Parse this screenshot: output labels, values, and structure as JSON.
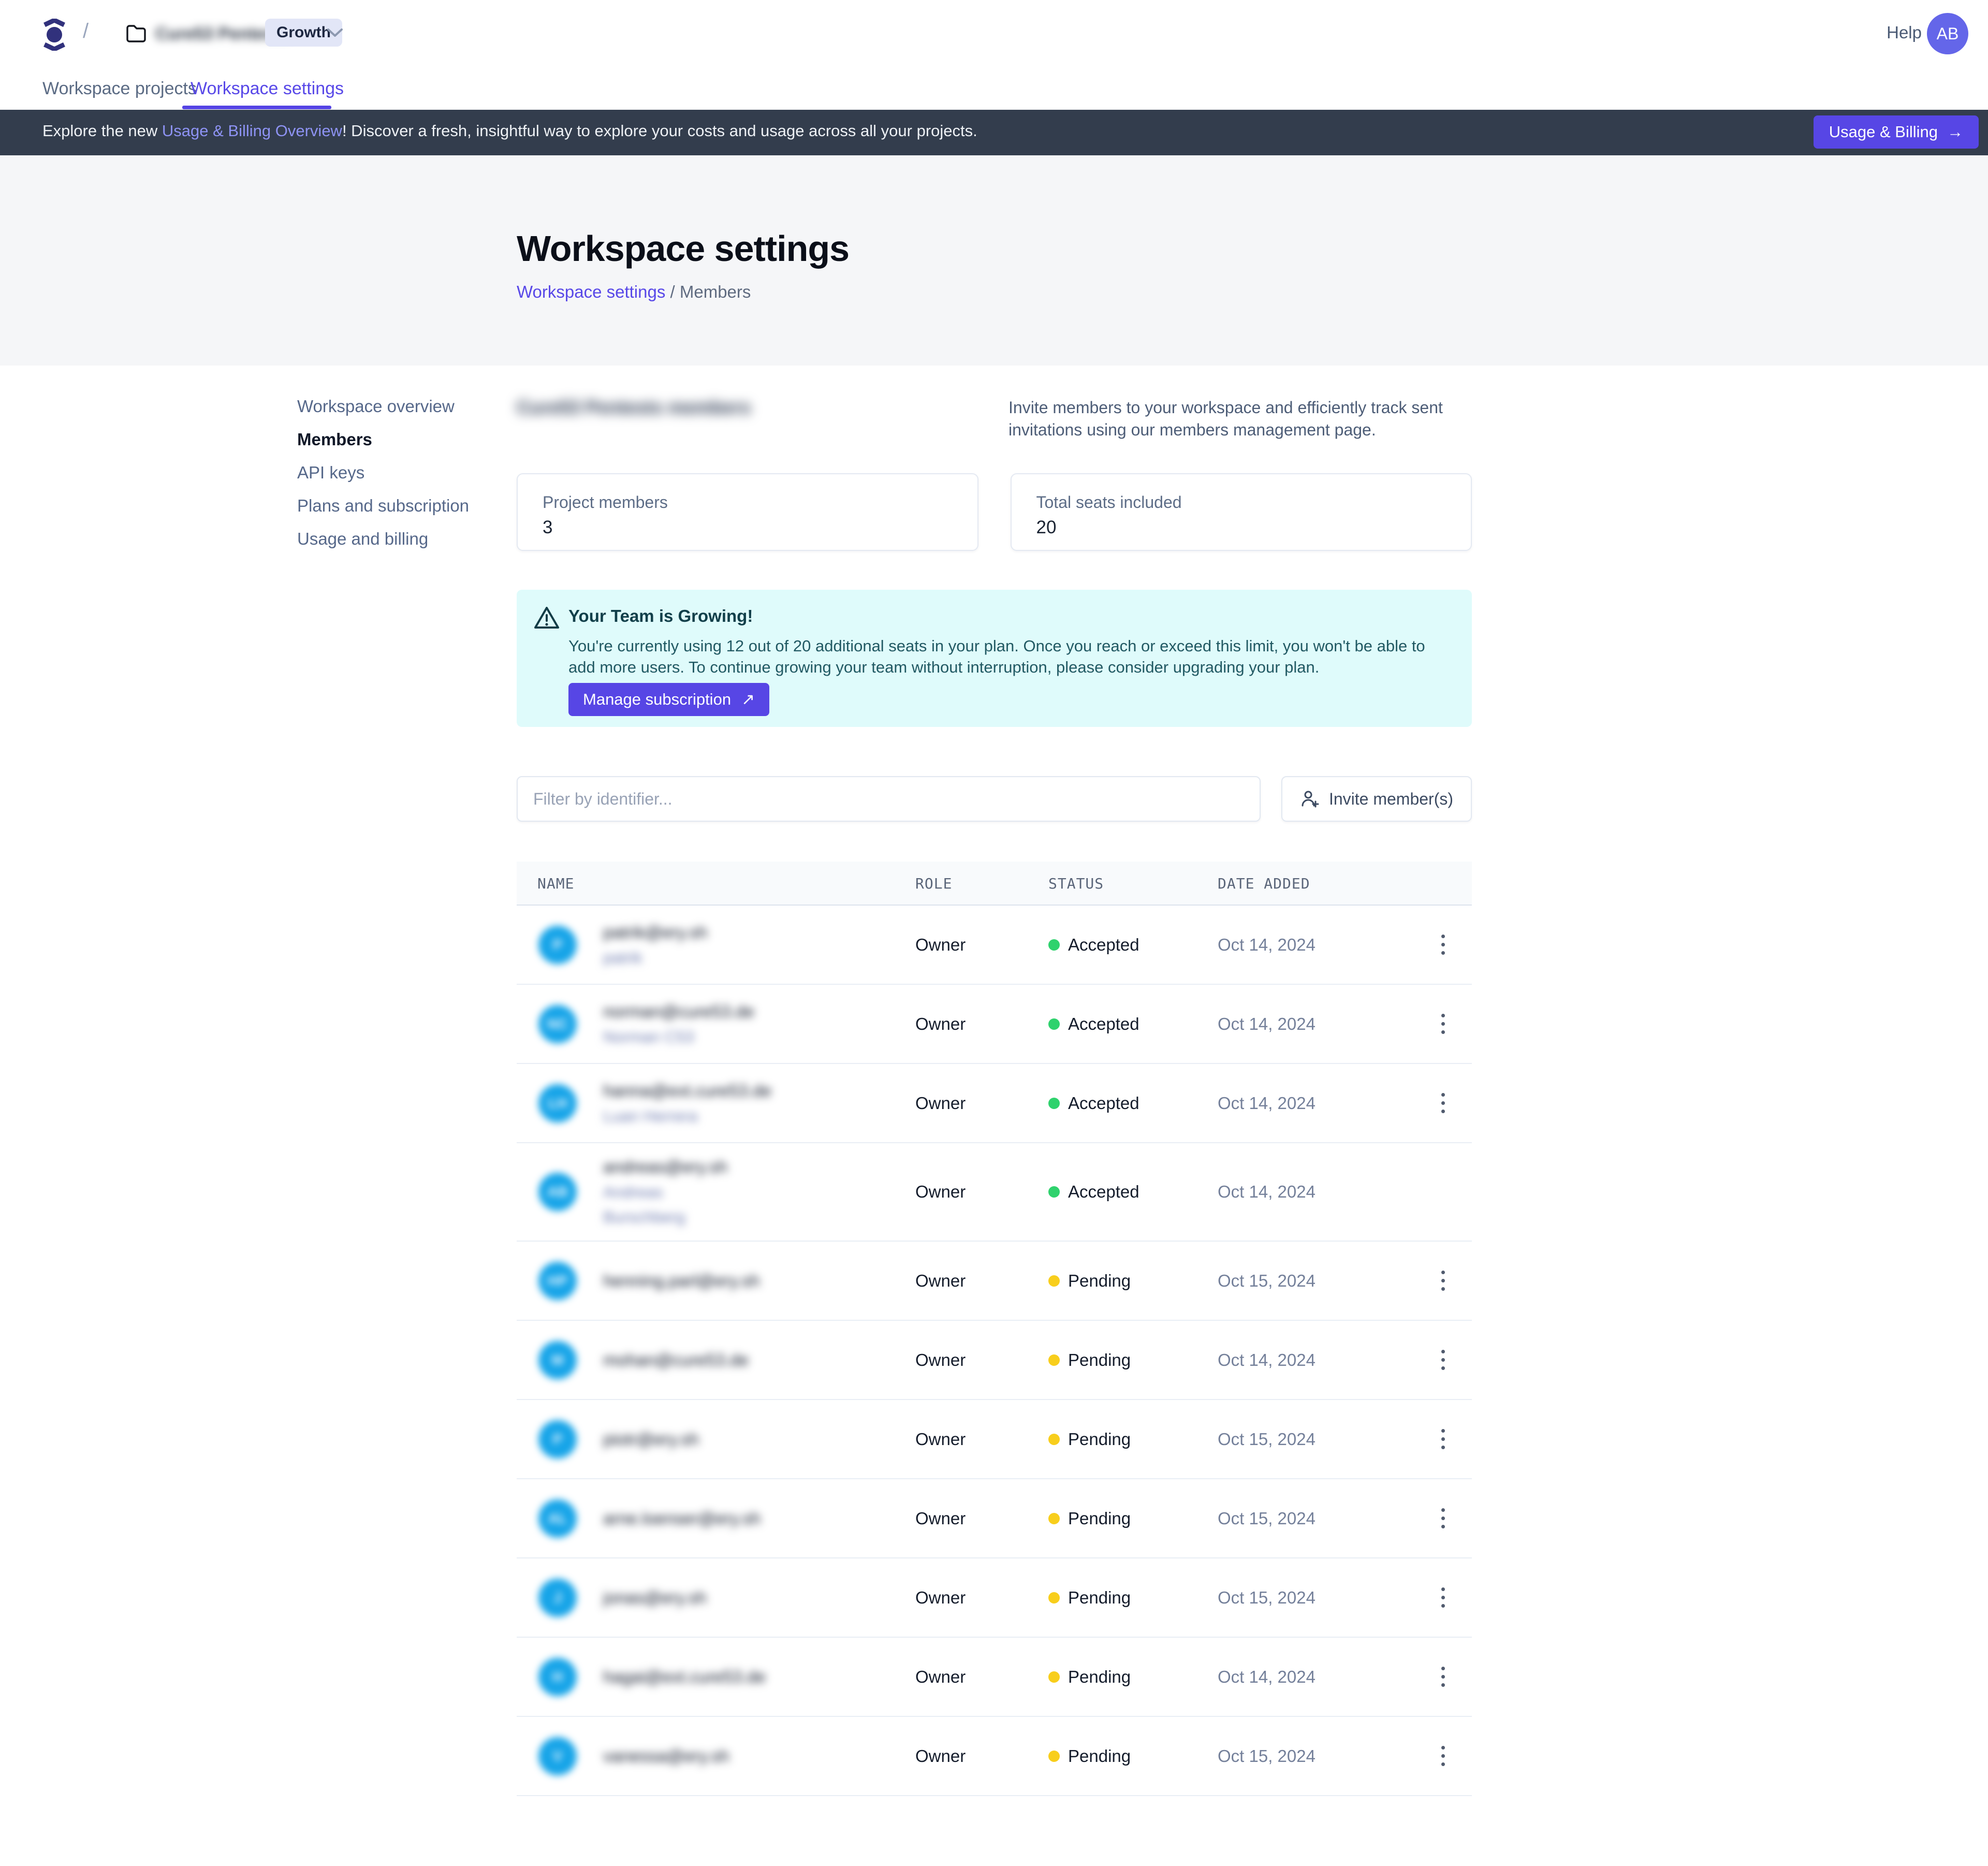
{
  "theme": {
    "accent": "#5746e5",
    "banner_bg": "#333d4d",
    "banner_link": "#8e93f4",
    "alert_bg": "#dffbfb",
    "alert_text": "#113f4a",
    "status_accepted": "#2fd26d",
    "status_pending": "#f8ce1c",
    "member_avatar": "#16a4e8",
    "user_avatar": "#6466e9"
  },
  "header": {
    "breadcrumb_slash": "/",
    "workspace_name": "Cure53 Pentests",
    "workspace_name_blurred": true,
    "plan_badge": "Growth",
    "help_label": "Help",
    "avatar_initials": "AB"
  },
  "tabs": [
    {
      "label": "Workspace projects",
      "active": false
    },
    {
      "label": "Workspace settings",
      "active": true
    }
  ],
  "banner": {
    "text_before": "Explore the new ",
    "link_text": "Usage & Billing Overview",
    "text_after": "! Discover a fresh, insightful way to explore your costs and usage across all your projects.",
    "button_label": "Usage & Billing",
    "button_arrow": "→"
  },
  "hero": {
    "title": "Workspace settings",
    "breadcrumb_link": "Workspace settings",
    "breadcrumb_rest": " / Members"
  },
  "sidebar": {
    "items": [
      {
        "label": "Workspace overview",
        "active": false
      },
      {
        "label": "Members",
        "active": true
      },
      {
        "label": "API keys",
        "active": false
      },
      {
        "label": "Plans and subscription",
        "active": false
      },
      {
        "label": "Usage and billing",
        "active": false
      }
    ]
  },
  "members_section": {
    "heading": "Cure53 Pentests members",
    "heading_blurred": true,
    "description": "Invite members to your workspace and efficiently track sent invitations using our members management page."
  },
  "stats": [
    {
      "label": "Project members",
      "value": "3"
    },
    {
      "label": "Total seats included",
      "value": "20"
    }
  ],
  "alert": {
    "title": "Your Team is Growing!",
    "body": "You're currently using 12 out of 20 additional seats in your plan. Once you reach or exceed this limit, you won't be able to add more users. To continue growing your team without interruption, please consider upgrading your plan.",
    "button_label": "Manage subscription",
    "button_arrow": "↗"
  },
  "toolbar": {
    "filter_placeholder": "Filter by identifier...",
    "invite_button_label": "Invite member(s)"
  },
  "table": {
    "columns": [
      "NAME",
      "ROLE",
      "STATUS",
      "DATE ADDED"
    ],
    "rows": [
      {
        "blurred": true,
        "initials": "P",
        "email": "patrik@ery.sh",
        "secondary_lines": [
          "patrik"
        ],
        "role": "Owner",
        "status": "Accepted",
        "date": "Oct 14, 2024",
        "has_menu": true
      },
      {
        "blurred": true,
        "initials": "NC",
        "email": "norman@cure53.de",
        "secondary_lines": [
          "Norman C53"
        ],
        "role": "Owner",
        "status": "Accepted",
        "date": "Oct 14, 2024",
        "has_menu": true
      },
      {
        "blurred": true,
        "initials": "LH",
        "email": "hanna@ext.cure53.de",
        "secondary_lines": [
          "Luan Herrera"
        ],
        "role": "Owner",
        "status": "Accepted",
        "date": "Oct 14, 2024",
        "has_menu": true
      },
      {
        "blurred": true,
        "initials": "AB",
        "email": "andreas@ery.sh",
        "secondary_lines": [
          "Andreas",
          "Burschberg"
        ],
        "role": "Owner",
        "status": "Accepted",
        "date": "Oct 14, 2024",
        "has_menu": false
      },
      {
        "blurred": true,
        "initials": "HP",
        "email": "henning.parl@ery.sh",
        "secondary_lines": [],
        "role": "Owner",
        "status": "Pending",
        "date": "Oct 15, 2024",
        "has_menu": true
      },
      {
        "blurred": true,
        "initials": "M",
        "email": "mohan@cure53.de",
        "secondary_lines": [],
        "role": "Owner",
        "status": "Pending",
        "date": "Oct 14, 2024",
        "has_menu": true
      },
      {
        "blurred": true,
        "initials": "P",
        "email": "piotr@ery.sh",
        "secondary_lines": [],
        "role": "Owner",
        "status": "Pending",
        "date": "Oct 15, 2024",
        "has_menu": true
      },
      {
        "blurred": true,
        "initials": "AL",
        "email": "arne.loenser@ery.sh",
        "secondary_lines": [],
        "role": "Owner",
        "status": "Pending",
        "date": "Oct 15, 2024",
        "has_menu": true
      },
      {
        "blurred": true,
        "initials": "J",
        "email": "jonas@ery.sh",
        "secondary_lines": [],
        "role": "Owner",
        "status": "Pending",
        "date": "Oct 15, 2024",
        "has_menu": true
      },
      {
        "blurred": true,
        "initials": "H",
        "email": "hagai@ext.cure53.de",
        "secondary_lines": [],
        "role": "Owner",
        "status": "Pending",
        "date": "Oct 14, 2024",
        "has_menu": true
      },
      {
        "blurred": true,
        "initials": "V",
        "email": "vanessa@ery.sh",
        "secondary_lines": [],
        "role": "Owner",
        "status": "Pending",
        "date": "Oct 15, 2024",
        "has_menu": true
      }
    ]
  }
}
